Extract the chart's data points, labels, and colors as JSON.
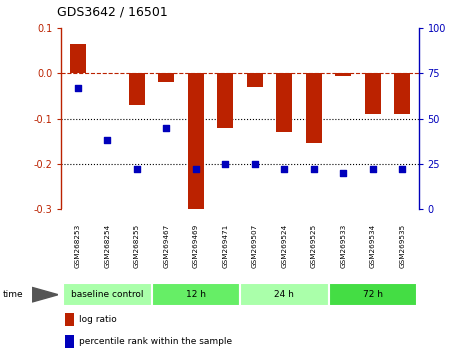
{
  "title": "GDS3642 / 16501",
  "samples": [
    "GSM268253",
    "GSM268254",
    "GSM268255",
    "GSM269467",
    "GSM269469",
    "GSM269471",
    "GSM269507",
    "GSM269524",
    "GSM269525",
    "GSM269533",
    "GSM269534",
    "GSM269535"
  ],
  "log_ratio": [
    0.065,
    0.0,
    -0.07,
    -0.02,
    -0.305,
    -0.12,
    -0.03,
    -0.13,
    -0.155,
    -0.005,
    -0.09,
    -0.09
  ],
  "percentile_rank": [
    67,
    38,
    22,
    45,
    22,
    25,
    25,
    22,
    22,
    20,
    22,
    22
  ],
  "groups": [
    {
      "label": "baseline control",
      "start": 0,
      "end": 3,
      "color": "#aaffaa"
    },
    {
      "label": "12 h",
      "start": 3,
      "end": 6,
      "color": "#66ee66"
    },
    {
      "label": "24 h",
      "start": 6,
      "end": 9,
      "color": "#aaffaa"
    },
    {
      "label": "72 h",
      "start": 9,
      "end": 12,
      "color": "#44dd44"
    }
  ],
  "bar_color": "#bb2200",
  "scatter_color": "#0000bb",
  "ylim_left": [
    -0.3,
    0.1
  ],
  "ylim_right": [
    0,
    100
  ],
  "yticks_left": [
    -0.3,
    -0.2,
    -0.1,
    0.0,
    0.1
  ],
  "yticks_right": [
    0,
    25,
    50,
    75,
    100
  ],
  "hline_y": 0.0,
  "dotted_lines": [
    -0.1,
    -0.2
  ],
  "background_color": "#ffffff",
  "label_area_color": "#cccccc",
  "label_divider_color": "#ffffff"
}
